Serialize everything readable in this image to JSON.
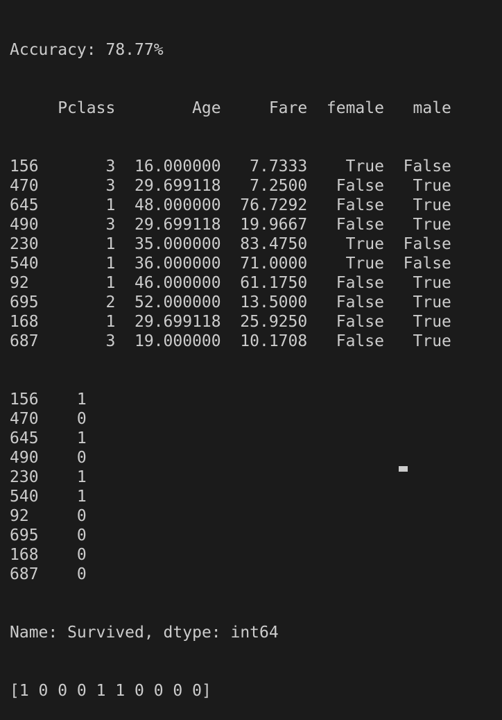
{
  "accuracy_line": "Accuracy: 78.77%",
  "dataframe": {
    "columns": [
      "Pclass",
      "Age",
      "Fare",
      "female",
      "male"
    ],
    "rows": [
      {
        "index": "156",
        "values": [
          "3",
          "16.000000",
          "7.7333",
          "True",
          "False"
        ]
      },
      {
        "index": "470",
        "values": [
          "3",
          "29.699118",
          "7.2500",
          "False",
          "True"
        ]
      },
      {
        "index": "645",
        "values": [
          "1",
          "48.000000",
          "76.7292",
          "False",
          "True"
        ]
      },
      {
        "index": "490",
        "values": [
          "3",
          "29.699118",
          "19.9667",
          "False",
          "True"
        ]
      },
      {
        "index": "230",
        "values": [
          "1",
          "35.000000",
          "83.4750",
          "True",
          "False"
        ]
      },
      {
        "index": "540",
        "values": [
          "1",
          "36.000000",
          "71.0000",
          "True",
          "False"
        ]
      },
      {
        "index": "92",
        "values": [
          "1",
          "46.000000",
          "61.1750",
          "False",
          "True"
        ]
      },
      {
        "index": "695",
        "values": [
          "2",
          "52.000000",
          "13.5000",
          "False",
          "True"
        ]
      },
      {
        "index": "168",
        "values": [
          "1",
          "29.699118",
          "25.9250",
          "False",
          "True"
        ]
      },
      {
        "index": "687",
        "values": [
          "3",
          "19.000000",
          "10.1708",
          "False",
          "True"
        ]
      }
    ]
  },
  "series": {
    "rows": [
      {
        "index": "156",
        "value": "1"
      },
      {
        "index": "470",
        "value": "0"
      },
      {
        "index": "645",
        "value": "1"
      },
      {
        "index": "490",
        "value": "0"
      },
      {
        "index": "230",
        "value": "1"
      },
      {
        "index": "540",
        "value": "1"
      },
      {
        "index": "92",
        "value": "0"
      },
      {
        "index": "695",
        "value": "0"
      },
      {
        "index": "168",
        "value": "0"
      },
      {
        "index": "687",
        "value": "0"
      }
    ],
    "footer": "Name: Survived, dtype: int64"
  },
  "predictions_line": "[1 0 0 0 1 1 0 0 0 0]",
  "colors": {
    "background": "#1b1b1b",
    "text": "#cccccc"
  }
}
